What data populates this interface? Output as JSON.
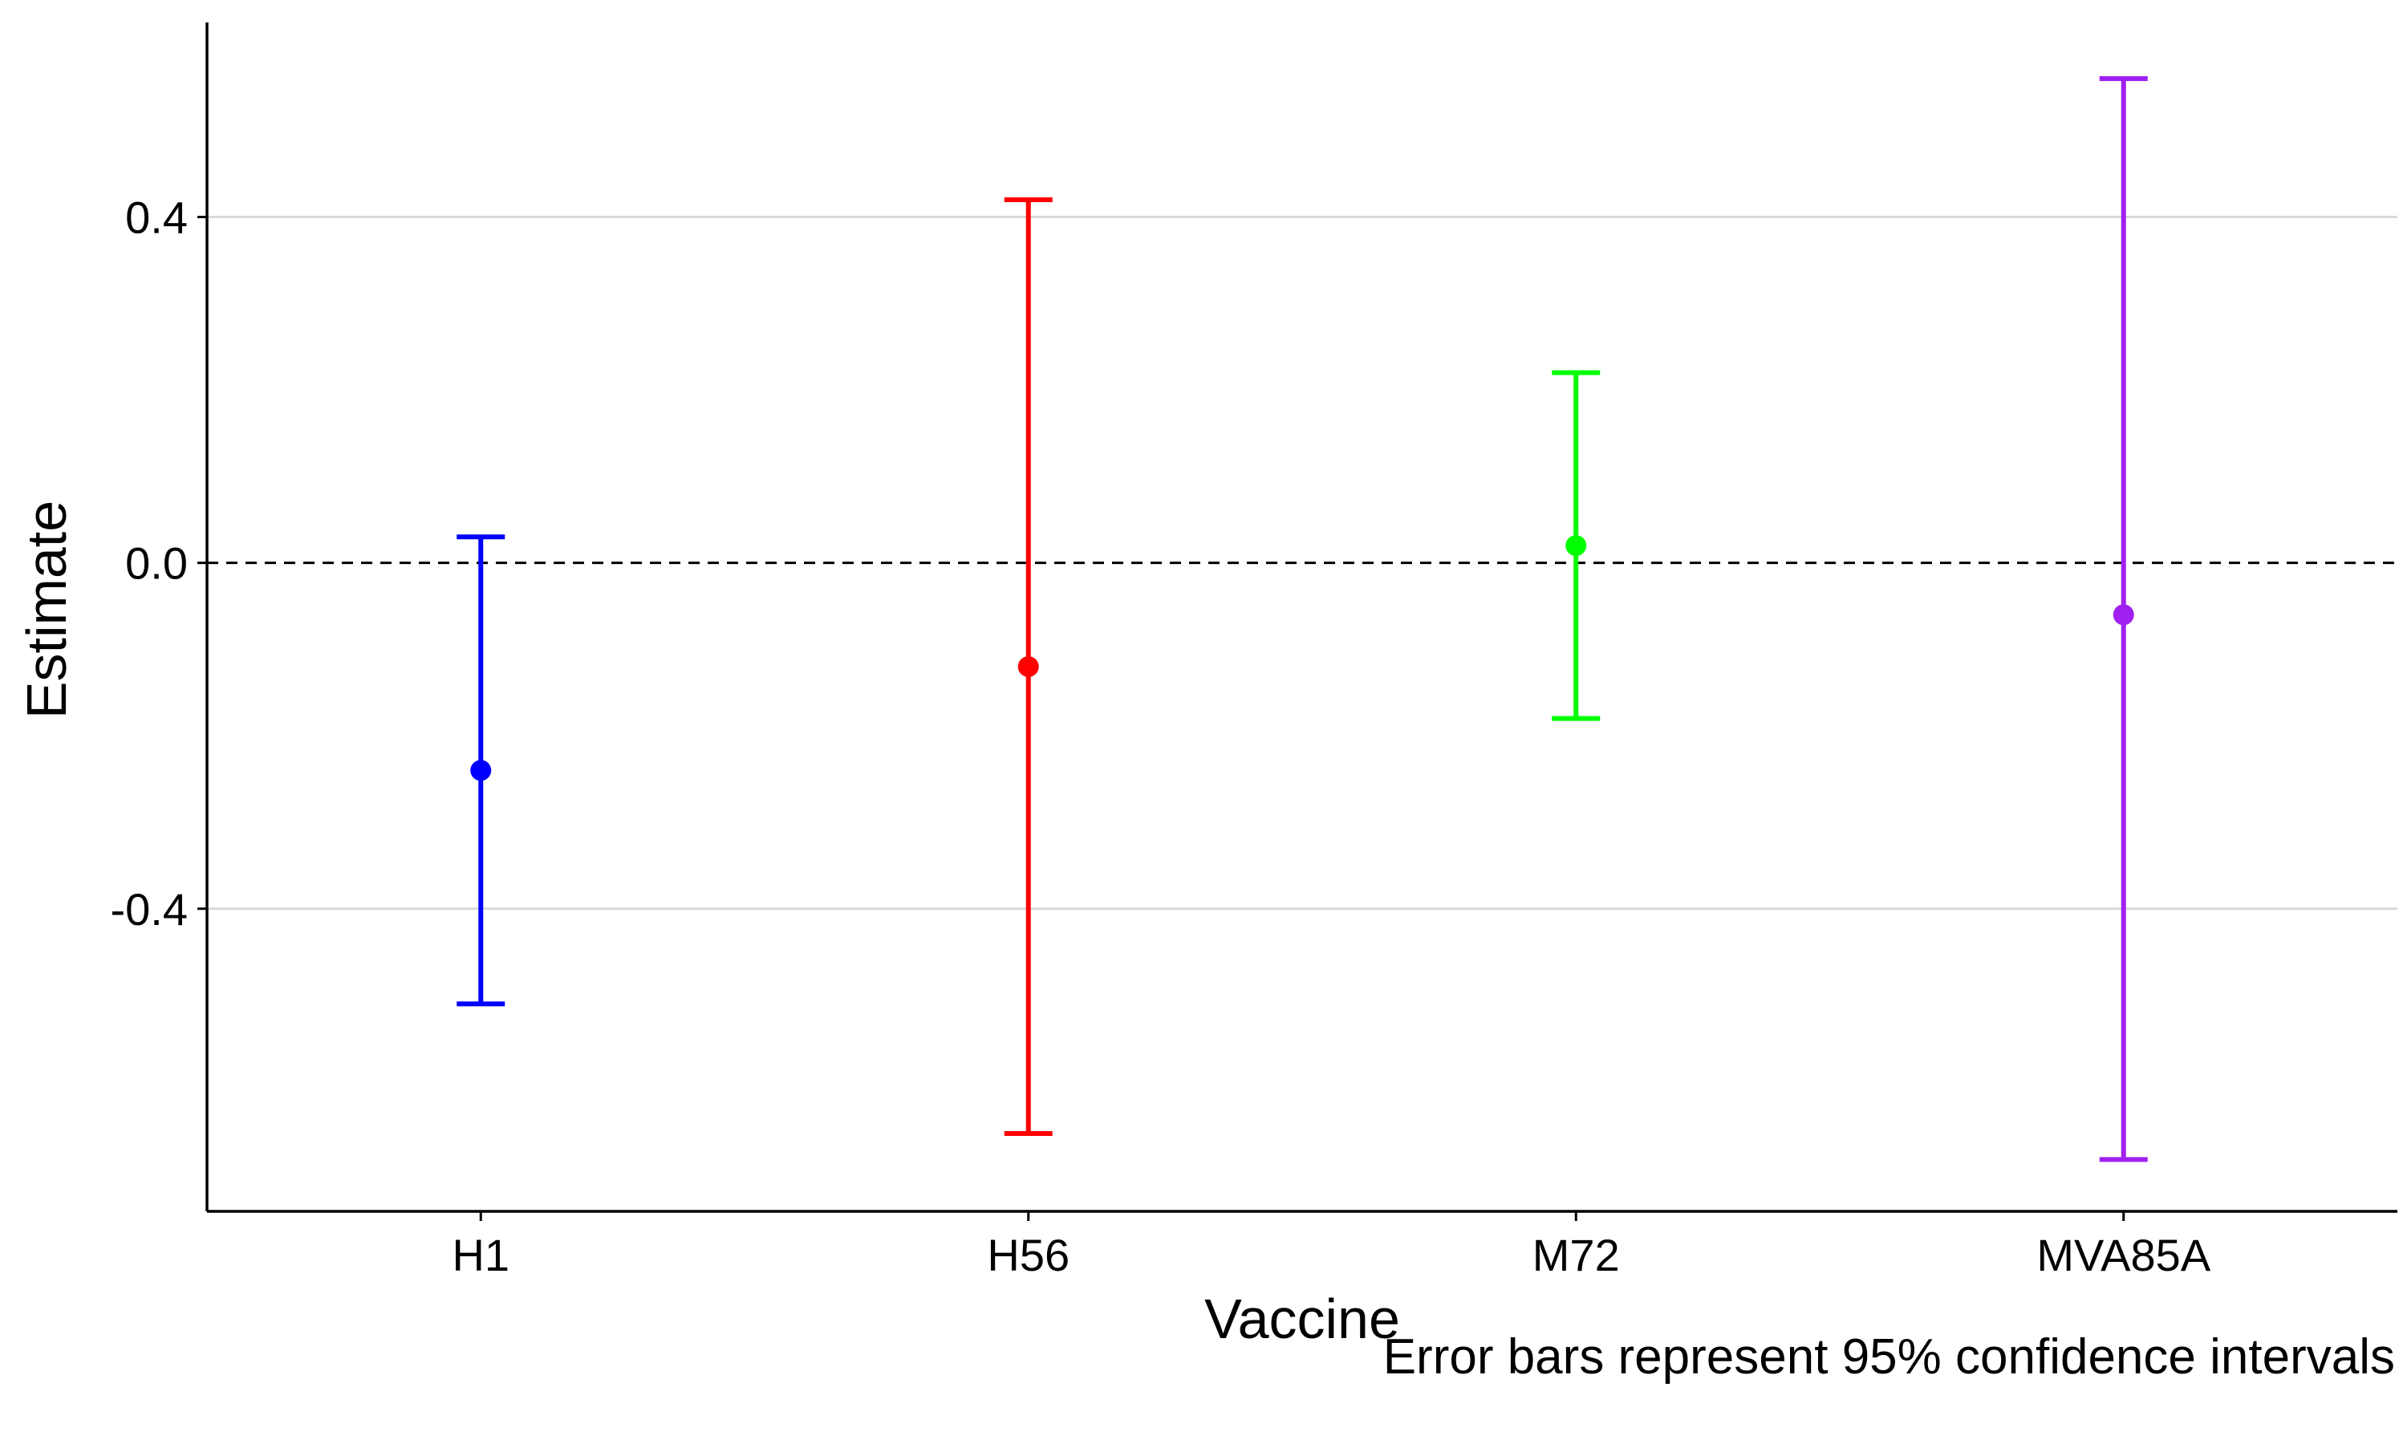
{
  "chart_data": {
    "type": "errorbar",
    "categories": [
      "H1",
      "H56",
      "M72",
      "MVA85A"
    ],
    "estimate": [
      -0.24,
      -0.12,
      0.02,
      -0.06
    ],
    "lower": [
      -0.51,
      -0.66,
      -0.18,
      -0.69
    ],
    "upper": [
      0.03,
      0.42,
      0.22,
      0.56
    ],
    "colors": [
      "#0000ff",
      "#ff0000",
      "#00ff00",
      "#a020f0"
    ],
    "xlabel": "Vaccine",
    "ylabel": "Estimate",
    "caption": "Error bars represent 95% confidence intervals",
    "ylim": [
      -0.75,
      0.625
    ],
    "yticks": [
      -0.4,
      0.0,
      0.4
    ],
    "ytick_labels": [
      "-0.4",
      "0.0",
      "0.4"
    ],
    "reference_line": {
      "y": 0,
      "style": "dashed"
    },
    "grid": {
      "horizontal_major": true,
      "vertical": false
    }
  }
}
